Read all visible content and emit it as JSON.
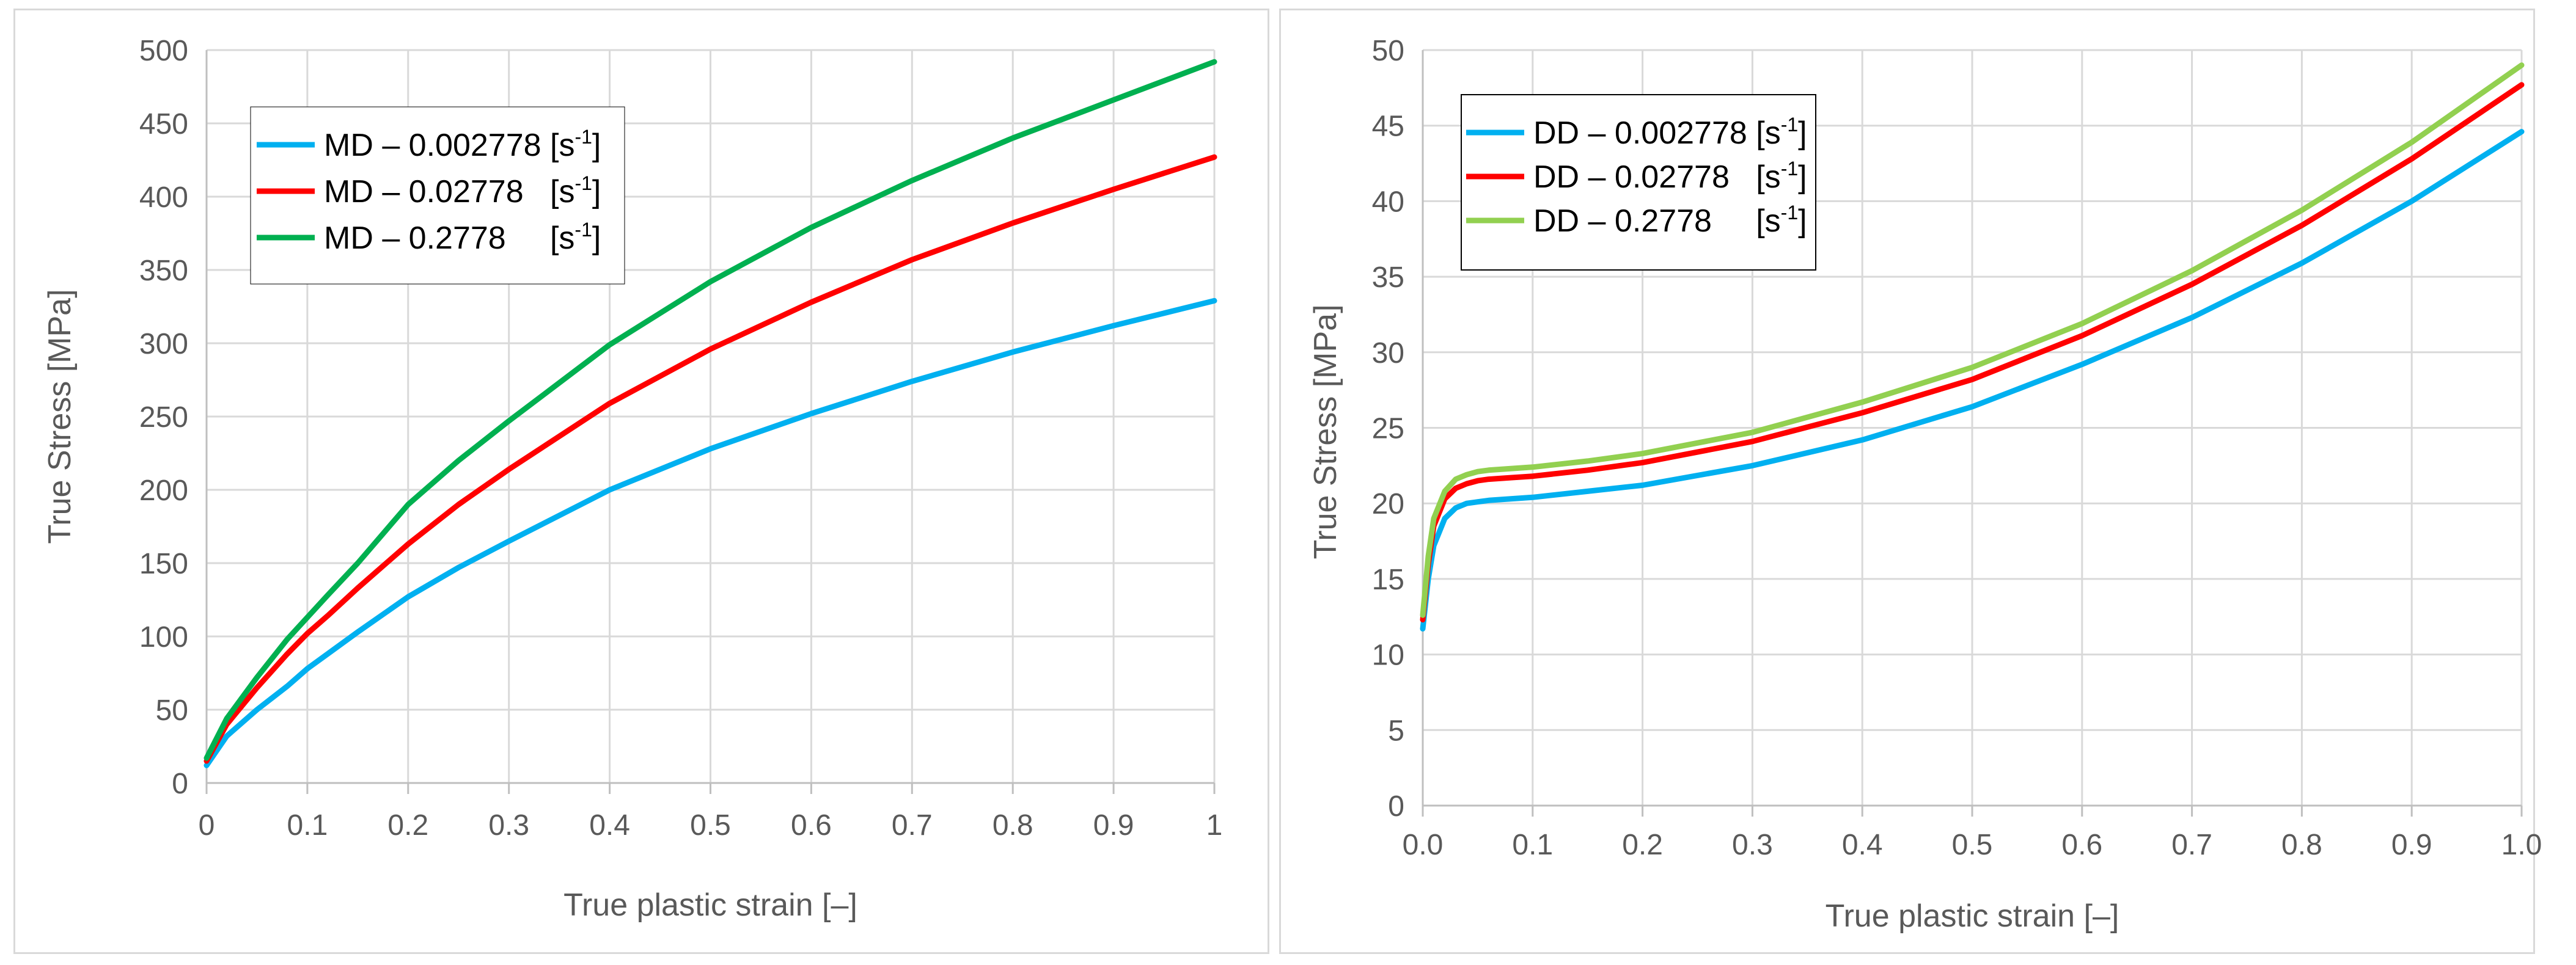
{
  "chart_data": [
    {
      "type": "line",
      "title": "",
      "xlabel": "True plastic strain  [–]",
      "ylabel": "True Stress [MPa]",
      "xlim": [
        0,
        1
      ],
      "ylim": [
        0,
        500
      ],
      "grid": true,
      "legend_position": "top-left",
      "x_ticks": [
        0,
        0.1,
        0.2,
        0.3,
        0.4,
        0.5,
        0.6,
        0.7,
        0.8,
        0.9,
        1
      ],
      "x_tick_labels": [
        "0",
        "0.1",
        "0.2",
        "0.3",
        "0.4",
        "0.5",
        "0.6",
        "0.7",
        "0.8",
        "0.9",
        "1"
      ],
      "y_ticks": [
        0,
        50,
        100,
        150,
        200,
        250,
        300,
        350,
        400,
        450,
        500
      ],
      "y_tick_labels": [
        "0",
        "50",
        "100",
        "150",
        "200",
        "250",
        "300",
        "350",
        "400",
        "450",
        "500"
      ],
      "series": [
        {
          "name": "MD – 0.002778 [s⁻¹]",
          "legend_main": "MD – 0.002778 [s",
          "legend_sup": "-1",
          "legend_end": "]",
          "color": "#00b0f0",
          "x": [
            0,
            0.02,
            0.05,
            0.08,
            0.1,
            0.12,
            0.15,
            0.2,
            0.25,
            0.3,
            0.4,
            0.5,
            0.6,
            0.7,
            0.8,
            0.9,
            1.0
          ],
          "values": [
            12,
            32,
            50,
            66,
            78,
            88,
            103,
            127,
            147,
            165,
            200,
            228,
            252,
            274,
            294,
            312,
            329
          ]
        },
        {
          "name": "MD – 0.02778   [s⁻¹]",
          "legend_main": "MD – 0.02778   [s",
          "legend_sup": "-1",
          "legend_end": "]",
          "color": "#ff0000",
          "x": [
            0,
            0.02,
            0.05,
            0.08,
            0.1,
            0.12,
            0.15,
            0.2,
            0.25,
            0.3,
            0.4,
            0.5,
            0.6,
            0.7,
            0.8,
            0.9,
            1.0
          ],
          "values": [
            15,
            40,
            65,
            88,
            102,
            114,
            133,
            163,
            190,
            214,
            259,
            296,
            328,
            357,
            382,
            405,
            427
          ]
        },
        {
          "name": "MD – 0.2778     [s⁻¹]",
          "legend_main": "MD – 0.2778     [s",
          "legend_sup": "-1",
          "legend_end": "]",
          "color": "#00b050",
          "x": [
            0,
            0.02,
            0.05,
            0.08,
            0.1,
            0.12,
            0.15,
            0.2,
            0.25,
            0.3,
            0.4,
            0.5,
            0.6,
            0.7,
            0.8,
            0.9,
            1.0
          ],
          "values": [
            17,
            44,
            72,
            98,
            113,
            128,
            150,
            190,
            220,
            247,
            299,
            342,
            379,
            411,
            440,
            466,
            492
          ]
        }
      ]
    },
    {
      "type": "line",
      "title": "",
      "xlabel": "True plastic strain [–]",
      "ylabel": "True Stress [MPa]",
      "xlim": [
        0,
        1
      ],
      "ylim": [
        0,
        50
      ],
      "grid": true,
      "legend_position": "top-left",
      "x_ticks": [
        0,
        0.1,
        0.2,
        0.3,
        0.4,
        0.5,
        0.6,
        0.7,
        0.8,
        0.9,
        1
      ],
      "x_tick_labels": [
        "0.0",
        "0.1",
        "0.2",
        "0.3",
        "0.4",
        "0.5",
        "0.6",
        "0.7",
        "0.8",
        "0.9",
        "1.0"
      ],
      "y_ticks": [
        0,
        5,
        10,
        15,
        20,
        25,
        30,
        35,
        40,
        45,
        50
      ],
      "y_tick_labels": [
        "0",
        "5",
        "10",
        "15",
        "20",
        "25",
        "30",
        "35",
        "40",
        "45",
        "50"
      ],
      "series": [
        {
          "name": "DD – 0.002778 [s⁻¹]",
          "legend_main": "DD – 0.002778 [s",
          "legend_sup": "-1",
          "legend_end": "]",
          "color": "#00b0f0",
          "x": [
            0,
            0.005,
            0.01,
            0.02,
            0.03,
            0.04,
            0.05,
            0.06,
            0.08,
            0.1,
            0.15,
            0.2,
            0.3,
            0.4,
            0.5,
            0.6,
            0.7,
            0.8,
            0.9,
            1.0
          ],
          "values": [
            11.7,
            15.0,
            17.2,
            19.0,
            19.7,
            20.0,
            20.1,
            20.2,
            20.3,
            20.4,
            20.8,
            21.2,
            22.5,
            24.2,
            26.4,
            29.2,
            32.3,
            35.9,
            40.0,
            44.6
          ]
        },
        {
          "name": "DD – 0.02778   [s⁻¹]",
          "legend_main": "DD – 0.02778   [s",
          "legend_sup": "-1",
          "legend_end": "]",
          "color": "#ff0000",
          "x": [
            0,
            0.005,
            0.01,
            0.02,
            0.03,
            0.04,
            0.05,
            0.06,
            0.08,
            0.1,
            0.15,
            0.2,
            0.3,
            0.4,
            0.5,
            0.6,
            0.7,
            0.8,
            0.9,
            1.0
          ],
          "values": [
            12.3,
            16.0,
            18.5,
            20.3,
            21.0,
            21.3,
            21.5,
            21.6,
            21.7,
            21.8,
            22.2,
            22.7,
            24.1,
            26.0,
            28.2,
            31.1,
            34.5,
            38.4,
            42.8,
            47.7
          ]
        },
        {
          "name": "DD – 0.2778     [s⁻¹]",
          "legend_main": "DD – 0.2778     [s",
          "legend_sup": "-1",
          "legend_end": "]",
          "color": "#92d050",
          "x": [
            0,
            0.005,
            0.01,
            0.02,
            0.03,
            0.04,
            0.05,
            0.06,
            0.08,
            0.1,
            0.15,
            0.2,
            0.3,
            0.4,
            0.5,
            0.6,
            0.7,
            0.8,
            0.9,
            1.0
          ],
          "values": [
            12.6,
            16.5,
            19.0,
            20.8,
            21.6,
            21.9,
            22.1,
            22.2,
            22.3,
            22.4,
            22.8,
            23.3,
            24.7,
            26.7,
            29.0,
            31.9,
            35.4,
            39.4,
            43.9,
            49.0
          ]
        }
      ]
    }
  ]
}
